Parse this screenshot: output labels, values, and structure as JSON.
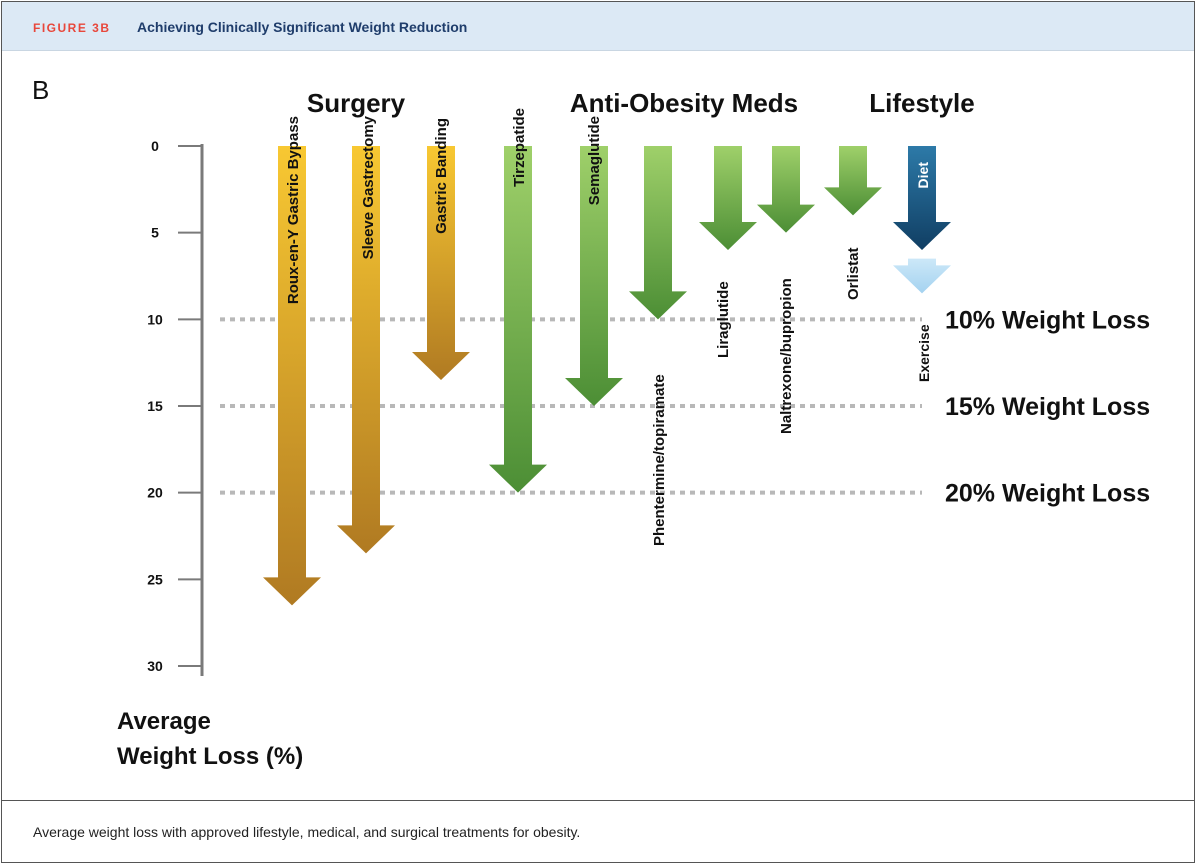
{
  "header": {
    "figure_label": "FIGURE 3B",
    "figure_title": "Achieving Clinically Significant Weight Reduction"
  },
  "caption": "Average weight loss with approved lifestyle, medical, and surgical treatments for obesity.",
  "colors": {
    "surgery_top": "#f8c832",
    "surgery_bottom": "#b07a22",
    "meds_top": "#9fd06a",
    "meds_bottom": "#4c8e35",
    "diet_top": "#2d7aa8",
    "diet_bottom": "#103e63",
    "exercise_top": "#cce8f8",
    "exercise_bottom": "#a4d2f0",
    "dotted_line": "#b8b8b8"
  },
  "chart_data": {
    "type": "bar",
    "panel_label": "B",
    "ylabel": "Average Weight Loss (%)",
    "ylabel_lines": [
      "Average",
      "Weight Loss (%)"
    ],
    "ylim": [
      0,
      30
    ],
    "yticks": [
      0,
      5,
      10,
      15,
      20,
      25,
      30
    ],
    "groups": [
      {
        "name": "Surgery",
        "categories": [
          "Roux-en-Y Gastric Bypass",
          "Sleeve Gastrectomy",
          "Gastric Banding"
        ]
      },
      {
        "name": "Anti-Obesity Meds",
        "categories": [
          "Tirzepatide",
          "Semaglutide",
          "Phentermine/topiramate",
          "Liraglutide",
          "Naltrexone/bupropion",
          "Orlistat"
        ]
      },
      {
        "name": "Lifestyle",
        "categories": [
          "Diet",
          "Exercise"
        ]
      }
    ],
    "bars": [
      {
        "label": "Roux-en-Y Gastric Bypass",
        "group": "Surgery",
        "start": 0,
        "value": 26.5
      },
      {
        "label": "Sleeve Gastrectomy",
        "group": "Surgery",
        "start": 0,
        "value": 23.5
      },
      {
        "label": "Gastric Banding",
        "group": "Surgery",
        "start": 0,
        "value": 13.5
      },
      {
        "label": "Tirzepatide",
        "group": "Anti-Obesity Meds",
        "start": 0,
        "value": 20
      },
      {
        "label": "Semaglutide",
        "group": "Anti-Obesity Meds",
        "start": 0,
        "value": 15
      },
      {
        "label": "Phentermine/topiramate",
        "group": "Anti-Obesity Meds",
        "start": 0,
        "value": 10
      },
      {
        "label": "Liraglutide",
        "group": "Anti-Obesity Meds",
        "start": 0,
        "value": 6
      },
      {
        "label": "Naltrexone/bupropion",
        "group": "Anti-Obesity Meds",
        "start": 0,
        "value": 5
      },
      {
        "label": "Orlistat",
        "group": "Anti-Obesity Meds",
        "start": 0,
        "value": 4
      },
      {
        "label": "Diet",
        "group": "Lifestyle",
        "start": 0,
        "value": 6
      },
      {
        "label": "Exercise",
        "group": "Lifestyle",
        "start": 6.5,
        "value": 8.5
      }
    ],
    "reference_lines": [
      {
        "value": 10,
        "label": "10% Weight Loss"
      },
      {
        "value": 15,
        "label": "15% Weight Loss"
      },
      {
        "value": 20,
        "label": "20% Weight Loss"
      }
    ]
  }
}
